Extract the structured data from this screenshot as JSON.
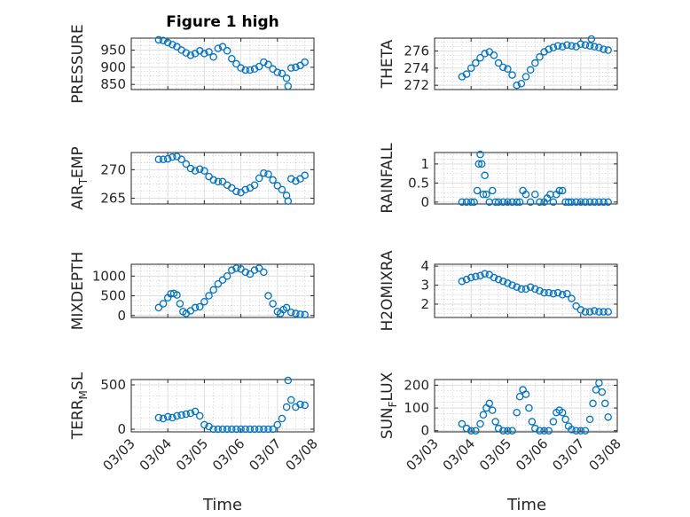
{
  "figure": {
    "title": "Figure 1 high",
    "xlabel": "Time",
    "date_ticks": [
      "03/03",
      "03/04",
      "03/05",
      "03/06",
      "03/07",
      "03/08"
    ],
    "grid": true,
    "marker": "open-circle",
    "marker_color": "#0072BD",
    "axis_color": "#262626"
  },
  "chart_data": [
    {
      "id": "pressure",
      "type": "scatter",
      "ylabel": "PRESSURE",
      "ylim": [
        835,
        985
      ],
      "yticks": [
        850,
        900,
        950
      ],
      "x": [
        "03/03 18:00",
        "03/03 21:00",
        "03/04 00:00",
        "03/04 03:00",
        "03/04 06:00",
        "03/04 09:00",
        "03/04 12:00",
        "03/04 15:00",
        "03/04 18:00",
        "03/04 21:00",
        "03/05 00:00",
        "03/05 03:00",
        "03/05 06:00",
        "03/05 09:00",
        "03/05 12:00",
        "03/05 15:00",
        "03/05 18:00",
        "03/05 21:00",
        "03/06 00:00",
        "03/06 03:00",
        "03/06 06:00",
        "03/06 09:00",
        "03/06 12:00",
        "03/06 15:00",
        "03/06 18:00",
        "03/06 21:00",
        "03/07 00:00",
        "03/07 03:00",
        "03/07 06:00",
        "03/07 07:00",
        "03/07 09:00",
        "03/07 12:00",
        "03/07 15:00",
        "03/07 18:00"
      ],
      "y": [
        980,
        978,
        972,
        966,
        960,
        950,
        942,
        935,
        940,
        948,
        940,
        945,
        930,
        955,
        960,
        948,
        925,
        910,
        898,
        892,
        892,
        895,
        902,
        915,
        908,
        895,
        885,
        882,
        868,
        845,
        898,
        900,
        905,
        915
      ]
    },
    {
      "id": "theta",
      "type": "scatter",
      "ylabel": "THETA",
      "ylim": [
        271.5,
        277.5
      ],
      "yticks": [
        272,
        274,
        276
      ],
      "x": [
        "03/03 18:00",
        "03/03 21:00",
        "03/04 00:00",
        "03/04 03:00",
        "03/04 06:00",
        "03/04 09:00",
        "03/04 12:00",
        "03/04 15:00",
        "03/04 18:00",
        "03/04 21:00",
        "03/05 00:00",
        "03/05 03:00",
        "03/05 06:00",
        "03/05 09:00",
        "03/05 12:00",
        "03/05 15:00",
        "03/05 18:00",
        "03/05 21:00",
        "03/06 00:00",
        "03/06 03:00",
        "03/06 06:00",
        "03/06 09:00",
        "03/06 12:00",
        "03/06 15:00",
        "03/06 18:00",
        "03/06 21:00",
        "03/07 00:00",
        "03/07 03:00",
        "03/07 06:00",
        "03/07 07:00",
        "03/07 09:00",
        "03/07 12:00",
        "03/07 15:00",
        "03/07 18:00"
      ],
      "y": [
        273.0,
        273.3,
        274.0,
        274.6,
        275.2,
        275.7,
        275.9,
        275.5,
        274.6,
        274.1,
        273.9,
        273.2,
        272.0,
        272.2,
        273.0,
        273.8,
        274.6,
        275.3,
        275.9,
        276.2,
        276.4,
        276.6,
        276.5,
        276.7,
        276.6,
        276.5,
        276.8,
        276.7,
        276.6,
        277.4,
        276.5,
        276.4,
        276.2,
        276.1
      ]
    },
    {
      "id": "air_temp",
      "type": "scatter",
      "ylabel": "AIR",
      "ylabel_sub": "T",
      "ylabel_suffix": "EMP",
      "ylim": [
        264,
        273
      ],
      "yticks": [
        265,
        270
      ],
      "x": [
        "03/03 18:00",
        "03/03 21:00",
        "03/04 00:00",
        "03/04 03:00",
        "03/04 06:00",
        "03/04 09:00",
        "03/04 12:00",
        "03/04 15:00",
        "03/04 18:00",
        "03/04 21:00",
        "03/05 00:00",
        "03/05 03:00",
        "03/05 06:00",
        "03/05 09:00",
        "03/05 12:00",
        "03/05 15:00",
        "03/05 18:00",
        "03/05 21:00",
        "03/06 00:00",
        "03/06 03:00",
        "03/06 06:00",
        "03/06 09:00",
        "03/06 12:00",
        "03/06 15:00",
        "03/06 18:00",
        "03/06 21:00",
        "03/07 00:00",
        "03/07 03:00",
        "03/07 06:00",
        "03/07 07:00",
        "03/07 09:00",
        "03/07 12:00",
        "03/07 15:00",
        "03/07 18:00"
      ],
      "y": [
        271.8,
        271.8,
        271.9,
        272.2,
        272.3,
        271.8,
        271.0,
        270.2,
        269.8,
        270.1,
        269.8,
        268.8,
        268.2,
        267.9,
        267.9,
        267.3,
        266.8,
        266.2,
        266.0,
        266.5,
        266.8,
        267.3,
        268.5,
        269.4,
        269.2,
        268.2,
        267.2,
        266.5,
        265.5,
        264.5,
        268.4,
        268.0,
        268.4,
        269.0
      ]
    },
    {
      "id": "rainfall",
      "type": "scatter",
      "ylabel": "RAINFALL",
      "ylim": [
        -0.05,
        1.3
      ],
      "yticks": [
        0,
        0.5,
        1
      ],
      "ytick_labels": [
        "0",
        "0.5",
        "1"
      ],
      "x": [
        "03/03 18:00",
        "03/03 21:00",
        "03/04 00:00",
        "03/04 02:00",
        "03/04 04:00",
        "03/04 05:00",
        "03/04 06:00",
        "03/04 07:00",
        "03/04 08:00",
        "03/04 09:00",
        "03/04 10:00",
        "03/04 12:00",
        "03/04 14:00",
        "03/04 16:00",
        "03/04 18:00",
        "03/04 21:00",
        "03/05 00:00",
        "03/05 03:00",
        "03/05 06:00",
        "03/05 08:00",
        "03/05 10:00",
        "03/05 12:00",
        "03/05 15:00",
        "03/05 18:00",
        "03/05 21:00",
        "03/06 00:00",
        "03/06 02:00",
        "03/06 04:00",
        "03/06 06:00",
        "03/06 08:00",
        "03/06 10:00",
        "03/06 12:00",
        "03/06 14:00",
        "03/06 16:00",
        "03/06 18:00",
        "03/06 21:00",
        "03/07 00:00",
        "03/07 03:00",
        "03/07 06:00",
        "03/07 09:00",
        "03/07 12:00",
        "03/07 15:00",
        "03/07 18:00"
      ],
      "y": [
        0,
        0,
        0,
        0,
        0.3,
        1.0,
        1.25,
        1.0,
        0.2,
        0.7,
        0.2,
        0,
        0.3,
        0,
        0,
        0,
        0,
        0,
        0,
        0,
        0.3,
        0.2,
        0,
        0.2,
        0,
        0,
        0.1,
        0.2,
        0,
        0.2,
        0.3,
        0.3,
        0,
        0,
        0,
        0,
        0,
        0,
        0,
        0,
        0,
        0,
        0
      ]
    },
    {
      "id": "mixdepth",
      "type": "scatter",
      "ylabel": "MIXDEPTH",
      "ylim": [
        -50,
        1300
      ],
      "yticks": [
        0,
        500,
        1000
      ],
      "x": [
        "03/03 18:00",
        "03/03 21:00",
        "03/04 00:00",
        "03/04 02:00",
        "03/04 04:00",
        "03/04 06:00",
        "03/04 08:00",
        "03/04 10:00",
        "03/04 12:00",
        "03/04 15:00",
        "03/04 18:00",
        "03/04 21:00",
        "03/05 00:00",
        "03/05 03:00",
        "03/05 06:00",
        "03/05 09:00",
        "03/05 12:00",
        "03/05 15:00",
        "03/05 18:00",
        "03/05 21:00",
        "03/06 00:00",
        "03/06 03:00",
        "03/06 06:00",
        "03/06 09:00",
        "03/06 12:00",
        "03/06 15:00",
        "03/06 18:00",
        "03/06 21:00",
        "03/07 00:00",
        "03/07 02:00",
        "03/07 04:00",
        "03/07 06:00",
        "03/07 09:00",
        "03/07 12:00",
        "03/07 15:00",
        "03/07 18:00"
      ],
      "y": [
        200,
        300,
        450,
        550,
        560,
        520,
        300,
        100,
        50,
        120,
        200,
        220,
        350,
        500,
        650,
        800,
        900,
        1000,
        1150,
        1200,
        1180,
        1100,
        1050,
        1150,
        1200,
        1100,
        500,
        300,
        100,
        50,
        150,
        200,
        80,
        50,
        30,
        20
      ]
    },
    {
      "id": "h2omixra",
      "type": "scatter",
      "ylabel": "H2OMIXRA",
      "ylim": [
        1.3,
        4.1
      ],
      "yticks": [
        2,
        3,
        4
      ],
      "x": [
        "03/03 18:00",
        "03/03 21:00",
        "03/04 00:00",
        "03/04 03:00",
        "03/04 06:00",
        "03/04 09:00",
        "03/04 12:00",
        "03/04 15:00",
        "03/04 18:00",
        "03/04 21:00",
        "03/05 00:00",
        "03/05 03:00",
        "03/05 06:00",
        "03/05 09:00",
        "03/05 12:00",
        "03/05 15:00",
        "03/05 18:00",
        "03/05 21:00",
        "03/06 00:00",
        "03/06 03:00",
        "03/06 06:00",
        "03/06 09:00",
        "03/06 12:00",
        "03/06 15:00",
        "03/06 18:00",
        "03/06 21:00",
        "03/07 00:00",
        "03/07 03:00",
        "03/07 06:00",
        "03/07 09:00",
        "03/07 12:00",
        "03/07 15:00",
        "03/07 18:00"
      ],
      "y": [
        3.2,
        3.3,
        3.4,
        3.45,
        3.5,
        3.6,
        3.55,
        3.4,
        3.3,
        3.2,
        3.1,
        3.0,
        2.9,
        2.8,
        2.8,
        2.9,
        2.8,
        2.7,
        2.6,
        2.6,
        2.55,
        2.6,
        2.5,
        2.55,
        2.3,
        1.9,
        1.7,
        1.6,
        1.6,
        1.65,
        1.6,
        1.6,
        1.6
      ]
    },
    {
      "id": "terr_msl",
      "type": "scatter",
      "ylabel": "TERR",
      "ylabel_sub": "M",
      "ylabel_suffix": "SL",
      "ylim": [
        -30,
        560
      ],
      "yticks": [
        0,
        500
      ],
      "x": [
        "03/03 18:00",
        "03/03 21:00",
        "03/04 00:00",
        "03/04 03:00",
        "03/04 06:00",
        "03/04 09:00",
        "03/04 12:00",
        "03/04 15:00",
        "03/04 18:00",
        "03/04 21:00",
        "03/05 00:00",
        "03/05 03:00",
        "03/05 06:00",
        "03/05 09:00",
        "03/05 12:00",
        "03/05 15:00",
        "03/05 18:00",
        "03/05 21:00",
        "03/06 00:00",
        "03/06 03:00",
        "03/06 06:00",
        "03/06 09:00",
        "03/06 12:00",
        "03/06 15:00",
        "03/06 18:00",
        "03/06 21:00",
        "03/07 00:00",
        "03/07 03:00",
        "03/07 06:00",
        "03/07 07:00",
        "03/07 09:00",
        "03/07 12:00",
        "03/07 15:00",
        "03/07 18:00"
      ],
      "y": [
        130,
        120,
        140,
        130,
        150,
        160,
        170,
        180,
        200,
        150,
        50,
        30,
        0,
        0,
        0,
        0,
        0,
        0,
        0,
        0,
        0,
        0,
        0,
        0,
        0,
        0,
        50,
        120,
        250,
        550,
        330,
        250,
        280,
        270
      ]
    },
    {
      "id": "sun_flux",
      "type": "scatter",
      "ylabel": "SUN",
      "ylabel_sub": "F",
      "ylabel_suffix": "LUX",
      "ylim": [
        -5,
        225
      ],
      "yticks": [
        0,
        100,
        200
      ],
      "x": [
        "03/03 18:00",
        "03/03 21:00",
        "03/04 00:00",
        "03/04 03:00",
        "03/04 06:00",
        "03/04 08:00",
        "03/04 10:00",
        "03/04 12:00",
        "03/04 14:00",
        "03/04 16:00",
        "03/04 18:00",
        "03/04 21:00",
        "03/05 00:00",
        "03/05 03:00",
        "03/05 06:00",
        "03/05 08:00",
        "03/05 10:00",
        "03/05 12:00",
        "03/05 14:00",
        "03/05 16:00",
        "03/05 18:00",
        "03/05 21:00",
        "03/06 00:00",
        "03/06 03:00",
        "03/06 06:00",
        "03/06 08:00",
        "03/06 10:00",
        "03/06 12:00",
        "03/06 14:00",
        "03/06 16:00",
        "03/06 18:00",
        "03/06 21:00",
        "03/07 00:00",
        "03/07 03:00",
        "03/07 06:00",
        "03/07 08:00",
        "03/07 10:00",
        "03/07 12:00",
        "03/07 14:00",
        "03/07 16:00",
        "03/07 18:00"
      ],
      "y": [
        30,
        10,
        0,
        0,
        30,
        70,
        100,
        120,
        90,
        40,
        10,
        0,
        0,
        0,
        80,
        150,
        180,
        160,
        100,
        40,
        10,
        0,
        0,
        0,
        40,
        80,
        90,
        80,
        50,
        20,
        5,
        0,
        0,
        0,
        50,
        120,
        180,
        210,
        170,
        120,
        60
      ]
    }
  ]
}
